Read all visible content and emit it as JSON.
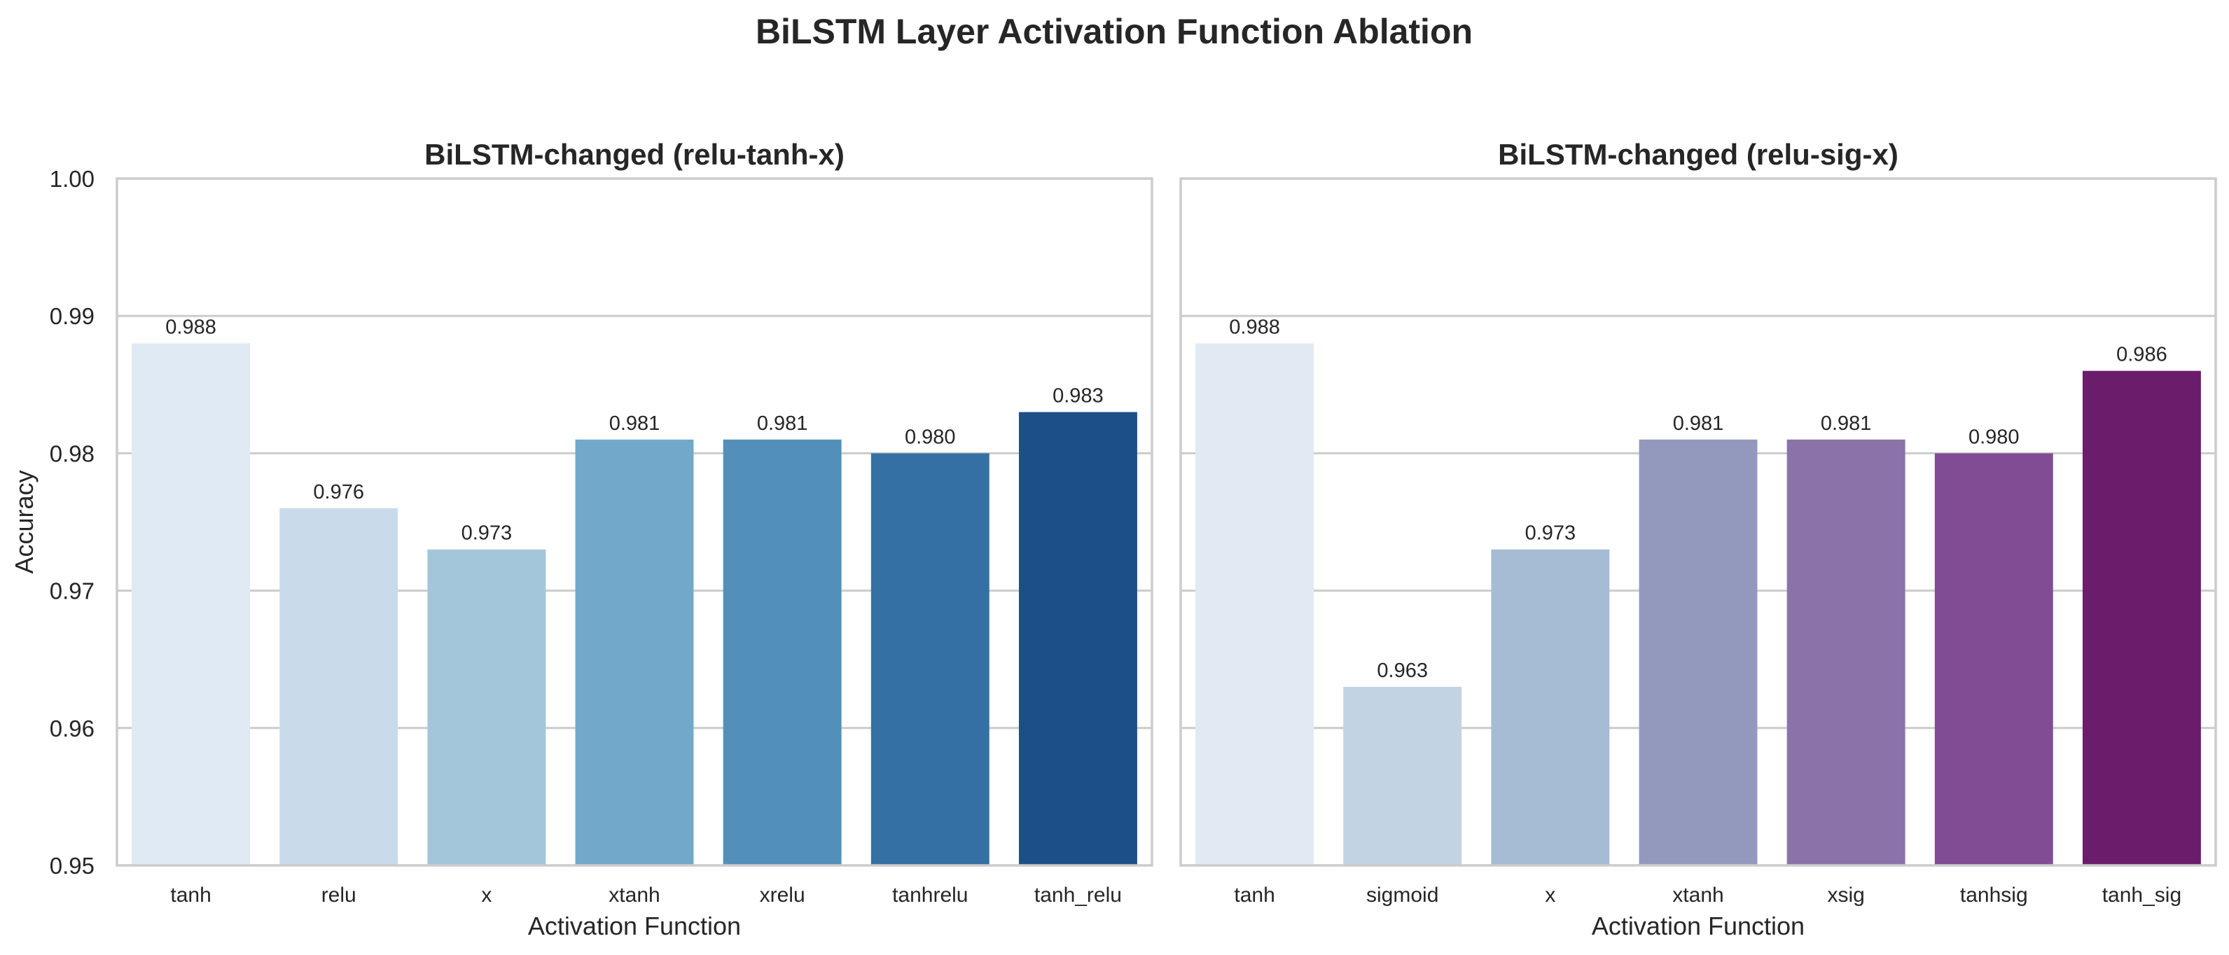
{
  "title": "BiLSTM Layer Activation Function Ablation",
  "chart_data": [
    {
      "type": "bar",
      "title": "BiLSTM-changed (relu-tanh-x)",
      "xlabel": "Activation Function",
      "ylabel": "Accuracy",
      "ylim": [
        0.95,
        1.0
      ],
      "yticks": [
        "0.95",
        "0.96",
        "0.97",
        "0.98",
        "0.99",
        "1.00"
      ],
      "grid": true,
      "categories": [
        "tanh",
        "relu",
        "x",
        "xtanh",
        "xrelu",
        "tanhrelu",
        "tanh_relu"
      ],
      "values": [
        0.988,
        0.976,
        0.973,
        0.981,
        0.981,
        0.98,
        0.983
      ],
      "value_labels": [
        "0.988",
        "0.976",
        "0.973",
        "0.981",
        "0.981",
        "0.980",
        "0.983"
      ],
      "colors": [
        "#dfeaf4",
        "#c9dbea",
        "#a3c6da",
        "#72a8ca",
        "#5290ba",
        "#3570a4",
        "#1c4f88"
      ]
    },
    {
      "type": "bar",
      "title": "BiLSTM-changed (relu-sig-x)",
      "xlabel": "Activation Function",
      "ylabel": "",
      "ylim": [
        0.95,
        1.0
      ],
      "grid": true,
      "categories": [
        "tanh",
        "sigmoid",
        "x",
        "xtanh",
        "xsig",
        "tanhsig",
        "tanh_sig"
      ],
      "values": [
        0.988,
        0.963,
        0.973,
        0.981,
        0.981,
        0.98,
        0.986
      ],
      "value_labels": [
        "0.988",
        "0.963",
        "0.973",
        "0.981",
        "0.981",
        "0.980",
        "0.986"
      ],
      "colors": [
        "#e1eaf3",
        "#c2d3e3",
        "#a6bbd4",
        "#9299bd",
        "#8b72a9",
        "#824c95",
        "#6b1d6c"
      ]
    }
  ]
}
